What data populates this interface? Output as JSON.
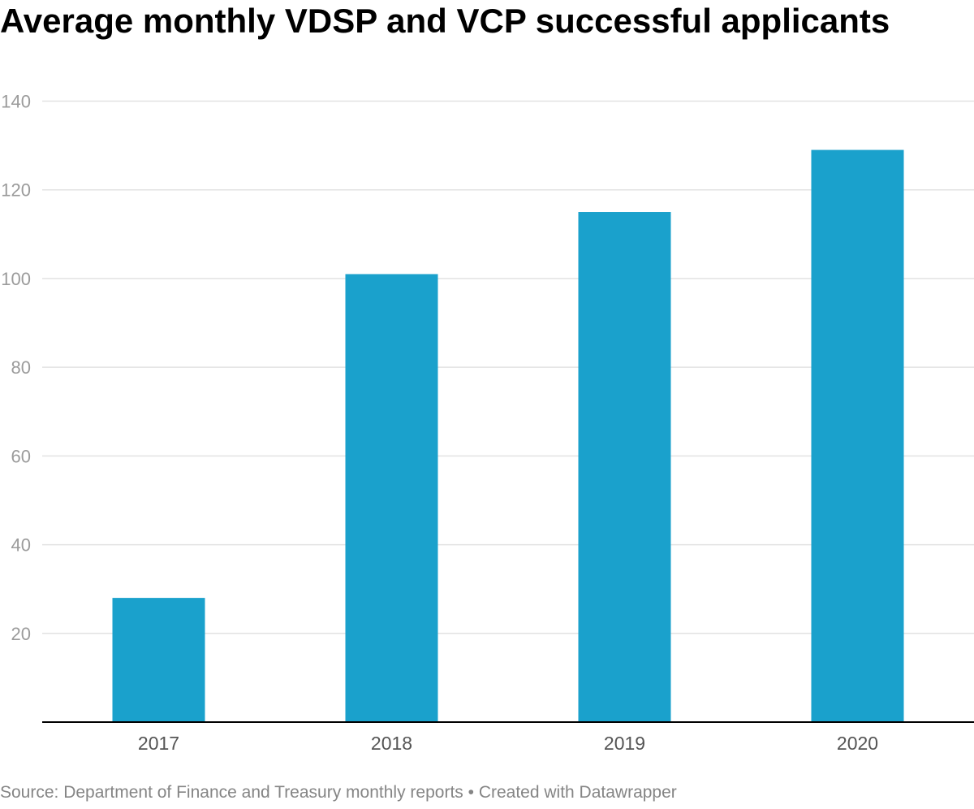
{
  "title": "Average monthly VDSP and VCP successful applicants",
  "footer": {
    "source": "Source: Department of Finance and Treasury monthly reports",
    "separator": "•",
    "credit": "Created with Datawrapper"
  },
  "colors": {
    "bar": "#1aa1cc",
    "gridline": "#e2e2e2",
    "baseline": "#000000"
  },
  "chart_data": {
    "type": "bar",
    "categories": [
      "2017",
      "2018",
      "2019",
      "2020"
    ],
    "values": [
      28,
      101,
      115,
      129
    ],
    "title": "Average monthly VDSP and VCP successful applicants",
    "xlabel": "",
    "ylabel": "",
    "ylim": [
      0,
      140
    ],
    "yticks": [
      20,
      40,
      60,
      80,
      100,
      120,
      140
    ],
    "grid": true,
    "legend": "none"
  }
}
